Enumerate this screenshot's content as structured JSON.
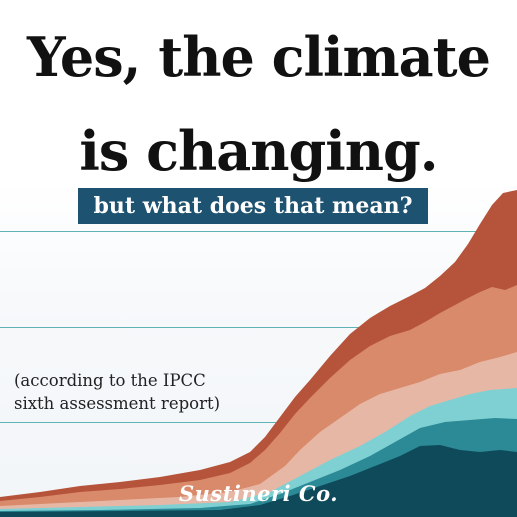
{
  "headline": {
    "line1": "Yes, the climate",
    "line2": "is changing."
  },
  "subtitle": "but what does that mean?",
  "note": {
    "line1": "(according to the IPCC",
    "line2": "sixth assessment report)"
  },
  "brand": "Sustineri Co.",
  "colors": {
    "headline": "#111111",
    "subtitle_bg": "#1d5270",
    "gridline": "#5fb3b5",
    "layer_top": "#b5543b",
    "layer_2": "#d98a6a",
    "layer_3": "#e7b7a6",
    "layer_4": "#7fd0d2",
    "layer_5": "#2b8a96",
    "layer_base": "#0e4a5a"
  }
}
